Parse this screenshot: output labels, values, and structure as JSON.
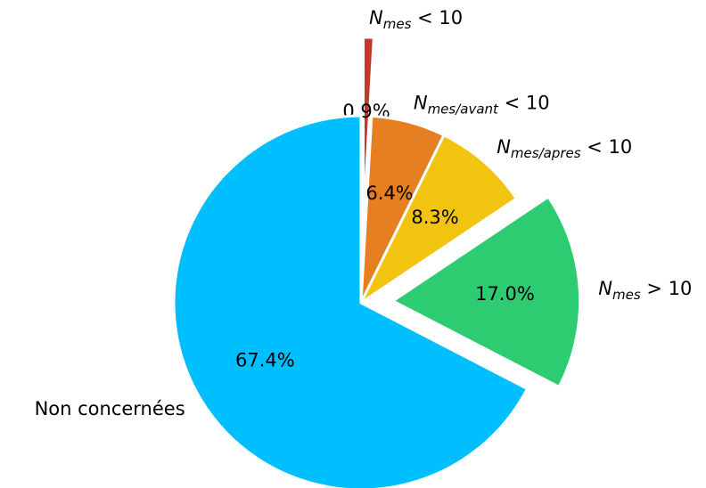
{
  "chart_data": {
    "type": "pie",
    "categories": [
      {
        "text": "N",
        "sub": "mes",
        "after": " < 10"
      },
      {
        "text": "N",
        "sub": "mes/avant",
        "after": " < 10"
      },
      {
        "text": "N",
        "sub": "mes/apres",
        "after": " < 10"
      },
      {
        "text": "N",
        "sub": "mes",
        "after": " > 10"
      },
      {
        "text": "Non concernées"
      }
    ],
    "values": [
      0.9,
      6.4,
      8.3,
      17.0,
      67.4
    ],
    "value_labels": [
      "0.9%",
      "6.4%",
      "8.3%",
      "17.0%",
      "67.4%"
    ],
    "colors": [
      "#c0392b",
      "#e67e22",
      "#f1c40f",
      "#2ecc71",
      "#00bfff"
    ],
    "explode": [
      0.42,
      0,
      0,
      0.17,
      0
    ],
    "start_angle": 90,
    "direction": "clockwise"
  }
}
